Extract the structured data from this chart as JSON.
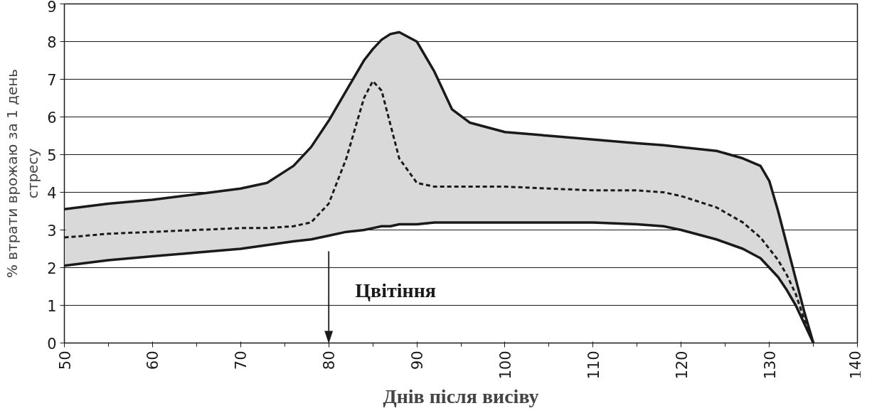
{
  "chart_data": {
    "type": "line",
    "xlabel": "Днів після висіву",
    "ylabel": "% втрати врожаю за 1 день\nстресу",
    "x": [
      50,
      55,
      60,
      65,
      70,
      73,
      76,
      78,
      80,
      82,
      84,
      85,
      86,
      87,
      88,
      90,
      92,
      94,
      96,
      100,
      105,
      110,
      115,
      118,
      120,
      124,
      127,
      129,
      130,
      131,
      132,
      133,
      134,
      135
    ],
    "series": [
      {
        "color": "#1a1a1a",
        "line_style": "dashed",
        "values": [
          2.8,
          2.9,
          2.95,
          3.0,
          3.05,
          3.05,
          3.1,
          3.2,
          3.7,
          4.9,
          6.5,
          6.95,
          6.7,
          5.8,
          4.9,
          4.25,
          4.15,
          4.15,
          4.15,
          4.15,
          4.1,
          4.05,
          4.05,
          4.0,
          3.9,
          3.6,
          3.2,
          2.8,
          2.5,
          2.2,
          1.8,
          1.3,
          0.6,
          0
        ],
        "upper": [
          3.55,
          3.7,
          3.8,
          3.95,
          4.1,
          4.25,
          4.7,
          5.2,
          5.9,
          6.7,
          7.5,
          7.8,
          8.05,
          8.2,
          8.25,
          8.0,
          7.2,
          6.2,
          5.85,
          5.6,
          5.5,
          5.4,
          5.3,
          5.25,
          5.2,
          5.1,
          4.9,
          4.7,
          4.3,
          3.5,
          2.6,
          1.7,
          0.8,
          0
        ],
        "lower": [
          2.05,
          2.2,
          2.3,
          2.4,
          2.5,
          2.6,
          2.7,
          2.75,
          2.85,
          2.95,
          3.0,
          3.05,
          3.1,
          3.1,
          3.15,
          3.15,
          3.2,
          3.2,
          3.2,
          3.2,
          3.2,
          3.2,
          3.15,
          3.1,
          3.0,
          2.75,
          2.5,
          2.25,
          2.0,
          1.75,
          1.4,
          1.0,
          0.5,
          0
        ]
      },
      {
        "color": "#1a1a1a",
        "line_style": "solid",
        "values": [
          3.55,
          3.7,
          3.8,
          3.95,
          4.1,
          4.25,
          4.7,
          5.2,
          5.9,
          6.7,
          7.5,
          7.8,
          8.05,
          8.2,
          8.25,
          8.0,
          7.2,
          6.2,
          5.85,
          5.6,
          5.5,
          5.4,
          5.3,
          5.25,
          5.2,
          5.1,
          4.9,
          4.7,
          4.3,
          3.5,
          2.6,
          1.7,
          0.8,
          0
        ]
      },
      {
        "color": "#1a1a1a",
        "line_style": "solid",
        "values": [
          2.05,
          2.2,
          2.3,
          2.4,
          2.5,
          2.6,
          2.7,
          2.75,
          2.85,
          2.95,
          3.0,
          3.05,
          3.1,
          3.1,
          3.15,
          3.15,
          3.2,
          3.2,
          3.2,
          3.2,
          3.2,
          3.2,
          3.15,
          3.1,
          3.0,
          2.75,
          2.5,
          2.25,
          2.0,
          1.75,
          1.4,
          1.0,
          0.5,
          0
        ]
      }
    ],
    "ref_lines": [
      {
        "axis": "x",
        "value": 80,
        "label": "Цвітіння",
        "color": "#1a1a1a"
      }
    ],
    "xlim": [
      50,
      140
    ],
    "ylim": [
      0,
      9
    ],
    "xticks": [
      50,
      60,
      70,
      80,
      90,
      100,
      110,
      120,
      130,
      140
    ],
    "yticks": [
      0,
      1,
      2,
      3,
      4,
      5,
      6,
      7,
      8,
      9
    ],
    "grid": "y",
    "marker": "none"
  }
}
